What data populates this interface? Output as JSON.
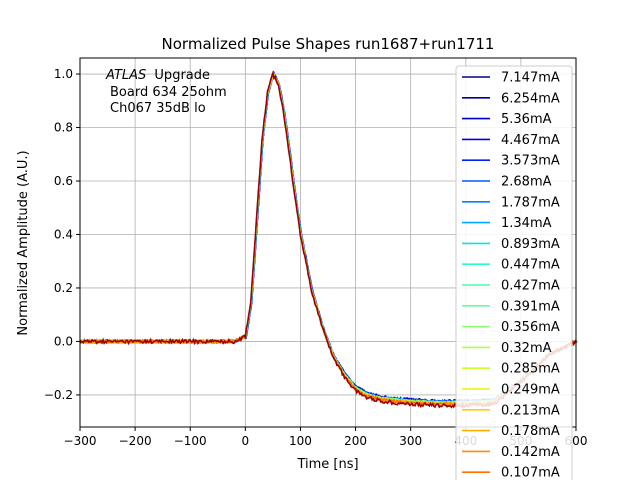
{
  "chart_data": {
    "type": "line",
    "title": "Normalized Pulse Shapes run1687+run1711",
    "xlabel": "Time [ns]",
    "ylabel": "Normalized Amplitude (A.U.)",
    "xlim": [
      -300,
      600
    ],
    "ylim": [
      -0.32,
      1.06
    ],
    "xticks": [
      -300,
      -200,
      -100,
      0,
      100,
      200,
      300,
      400,
      500,
      600
    ],
    "yticks": [
      -0.2,
      0.0,
      0.2,
      0.4,
      0.6,
      0.8,
      1.0
    ],
    "xtick_labels": [
      "−300",
      "−200",
      "−100",
      "0",
      "100",
      "200",
      "300",
      "400",
      "500",
      "600"
    ],
    "ytick_labels": [
      "−0.2",
      "0.0",
      "0.2",
      "0.4",
      "0.6",
      "0.8",
      "1.0"
    ],
    "grid": true,
    "legend_position": "right",
    "annotation": {
      "atlas": "ATLAS",
      "line1_rest": "Upgrade",
      "line2": "Board 634 25ohm",
      "line3": "Ch067 35dB lo"
    },
    "pulse_points": [
      [
        -300,
        0.0
      ],
      [
        -20,
        0.0
      ],
      [
        0,
        0.02
      ],
      [
        10,
        0.15
      ],
      [
        20,
        0.45
      ],
      [
        30,
        0.75
      ],
      [
        40,
        0.93
      ],
      [
        50,
        1.0
      ],
      [
        60,
        0.96
      ],
      [
        70,
        0.85
      ],
      [
        80,
        0.7
      ],
      [
        90,
        0.54
      ],
      [
        100,
        0.4
      ],
      [
        120,
        0.19
      ],
      [
        140,
        0.05
      ],
      [
        160,
        -0.06
      ],
      [
        180,
        -0.13
      ],
      [
        200,
        -0.18
      ],
      [
        220,
        -0.205
      ],
      [
        250,
        -0.22
      ],
      [
        300,
        -0.23
      ],
      [
        350,
        -0.235
      ],
      [
        400,
        -0.235
      ],
      [
        450,
        -0.23
      ],
      [
        500,
        -0.15
      ],
      [
        550,
        -0.05
      ],
      [
        600,
        0.0
      ]
    ],
    "series": [
      {
        "name": "7.147mA",
        "color": "#00007f"
      },
      {
        "name": "6.254mA",
        "color": "#00009f"
      },
      {
        "name": "5.36mA",
        "color": "#0000c4"
      },
      {
        "name": "4.467mA",
        "color": "#0000e8"
      },
      {
        "name": "3.573mA",
        "color": "#0020ff"
      },
      {
        "name": "2.68mA",
        "color": "#0058ff"
      },
      {
        "name": "1.787mA",
        "color": "#0080ff"
      },
      {
        "name": "1.34mA",
        "color": "#00a8ff"
      },
      {
        "name": "0.893mA",
        "color": "#12e0e4"
      },
      {
        "name": "0.447mA",
        "color": "#2ef8d0"
      },
      {
        "name": "0.427mA",
        "color": "#48ffae"
      },
      {
        "name": "0.391mA",
        "color": "#66ff90"
      },
      {
        "name": "0.356mA",
        "color": "#86ff70"
      },
      {
        "name": "0.32mA",
        "color": "#a8ff4e"
      },
      {
        "name": "0.285mA",
        "color": "#cbff2c"
      },
      {
        "name": "0.249mA",
        "color": "#e8f600"
      },
      {
        "name": "0.213mA",
        "color": "#ffce00"
      },
      {
        "name": "0.178mA",
        "color": "#ffae00"
      },
      {
        "name": "0.142mA",
        "color": "#ff8c00"
      },
      {
        "name": "0.107mA",
        "color": "#ff7000"
      }
    ]
  }
}
